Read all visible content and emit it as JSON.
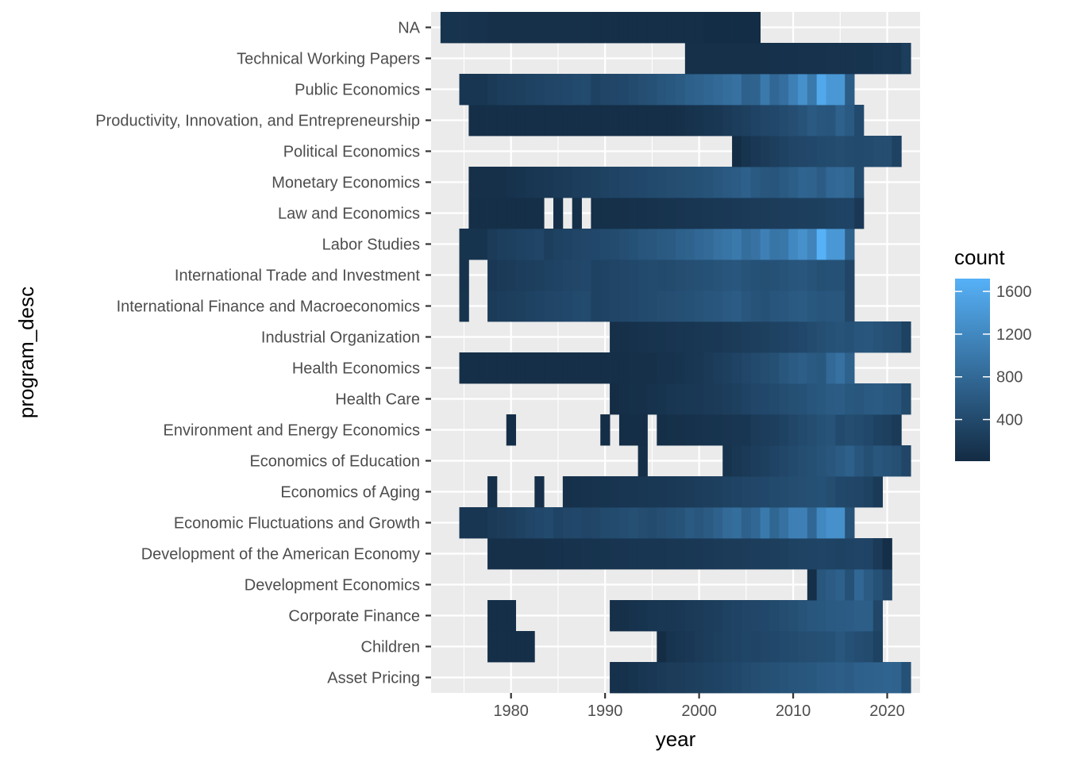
{
  "chart_data": {
    "type": "heatmap",
    "xlabel": "year",
    "ylabel": "program_desc",
    "xlim": [
      1971.5,
      2023.5
    ],
    "x_ticks": [
      1980,
      1990,
      2000,
      2010,
      2020
    ],
    "x_tick_labels": [
      "1980",
      "1990",
      "2000",
      "2010",
      "2020"
    ],
    "grid": true,
    "legend": {
      "title": "count",
      "position": "right",
      "min": 10,
      "max": 1720,
      "ticks": [
        400,
        800,
        1200,
        1600
      ],
      "tick_labels": [
        "400",
        "800",
        "1200",
        "1600"
      ],
      "color_low": "#132B43",
      "color_high": "#56B1F7"
    },
    "categories": [
      "Asset Pricing",
      "Children",
      "Corporate Finance",
      "Development Economics",
      "Development of the American Economy",
      "Economic Fluctuations and Growth",
      "Economics of Aging",
      "Economics of Education",
      "Environment and Energy Economics",
      "Health Care",
      "Health Economics",
      "Industrial Organization",
      "International Finance and Macroeconomics",
      "International Trade and Investment",
      "Labor Studies",
      "Law and Economics",
      "Monetary Economics",
      "Political Economics",
      "Productivity, Innovation, and Entrepreneurship",
      "Public Economics",
      "Technical Working Papers",
      "NA"
    ],
    "rows": [
      {
        "program": "Asset Pricing",
        "start": 1991,
        "values": [
          90,
          90,
          120,
          150,
          180,
          200,
          230,
          230,
          260,
          280,
          300,
          320,
          350,
          380,
          420,
          450,
          480,
          500,
          520,
          540,
          560,
          580,
          620,
          640,
          660,
          640,
          680,
          700,
          720,
          740,
          720,
          500
        ]
      },
      {
        "program": "Children",
        "start": 1978,
        "values": [
          60,
          60,
          60,
          60,
          60,
          null,
          null,
          null,
          null,
          null,
          null,
          null,
          null,
          null,
          null,
          null,
          null,
          null,
          30,
          120,
          150,
          180,
          220,
          250,
          280,
          300,
          320,
          350,
          330,
          360,
          380,
          400,
          420,
          440,
          460,
          480,
          500,
          560,
          500,
          450,
          420,
          300
        ]
      },
      {
        "program": "Corporate Finance",
        "start": 1978,
        "values": [
          60,
          60,
          60,
          null,
          null,
          null,
          null,
          null,
          null,
          null,
          null,
          null,
          null,
          80,
          80,
          100,
          120,
          140,
          160,
          160,
          180,
          200,
          220,
          240,
          260,
          300,
          320,
          340,
          360,
          380,
          400,
          440,
          480,
          520,
          560,
          580,
          600,
          620,
          640,
          660,
          660,
          360
        ]
      },
      {
        "program": "Development Economics",
        "start": 2012,
        "values": [
          60,
          560,
          640,
          680,
          500,
          780,
          620,
          500,
          360
        ]
      },
      {
        "program": "Development of the American Economy",
        "start": 1978,
        "values": [
          80,
          80,
          80,
          80,
          80,
          80,
          90,
          90,
          100,
          100,
          110,
          120,
          120,
          130,
          130,
          140,
          140,
          150,
          150,
          160,
          160,
          170,
          180,
          190,
          200,
          210,
          220,
          230,
          240,
          250,
          260,
          280,
          300,
          310,
          320,
          330,
          320,
          300,
          320,
          330,
          320,
          200,
          60
        ]
      },
      {
        "program": "Economic Fluctuations and Growth",
        "start": 1975,
        "values": [
          150,
          150,
          150,
          200,
          230,
          260,
          300,
          340,
          380,
          400,
          320,
          360,
          380,
          340,
          360,
          400,
          420,
          450,
          480,
          440,
          420,
          460,
          500,
          520,
          600,
          560,
          620,
          700,
          820,
          860,
          700,
          780,
          1000,
          760,
          900,
          1100,
          1100,
          780,
          1200,
          1300,
          1300,
          520
        ]
      },
      {
        "program": "Economics of Aging",
        "start": 1978,
        "values": [
          80,
          null,
          null,
          null,
          null,
          80,
          null,
          null,
          80,
          90,
          100,
          110,
          120,
          130,
          140,
          150,
          160,
          170,
          180,
          190,
          200,
          220,
          240,
          260,
          280,
          300,
          320,
          340,
          360,
          380,
          400,
          420,
          440,
          460,
          480,
          500,
          440,
          380,
          360,
          340,
          300,
          200
        ]
      },
      {
        "program": "Economics of Education",
        "start": 1994,
        "values": [
          60,
          null,
          null,
          null,
          null,
          null,
          null,
          null,
          null,
          120,
          160,
          200,
          240,
          280,
          320,
          360,
          400,
          440,
          480,
          520,
          560,
          620,
          680,
          560,
          480,
          560,
          520,
          480,
          360
        ]
      },
      {
        "program": "Environment and Energy Economics",
        "start": 1980,
        "values": [
          50,
          null,
          null,
          null,
          null,
          null,
          null,
          null,
          null,
          null,
          50,
          null,
          50,
          50,
          50,
          null,
          60,
          70,
          80,
          90,
          100,
          110,
          120,
          130,
          140,
          150,
          220,
          240,
          260,
          300,
          360,
          400,
          440,
          500,
          520,
          400,
          440,
          420,
          380,
          300,
          280,
          200
        ]
      },
      {
        "program": "Health Care",
        "start": 1991,
        "values": [
          30,
          60,
          70,
          80,
          100,
          120,
          140,
          160,
          170,
          180,
          200,
          220,
          240,
          280,
          320,
          360,
          380,
          400,
          440,
          480,
          500,
          540,
          580,
          620,
          640,
          580,
          560,
          600,
          620,
          580,
          560,
          400
        ]
      },
      {
        "program": "Health Economics",
        "start": 1975,
        "values": [
          60,
          60,
          60,
          60,
          60,
          60,
          60,
          60,
          60,
          60,
          60,
          60,
          60,
          60,
          60,
          60,
          60,
          60,
          80,
          80,
          80,
          100,
          100,
          120,
          140,
          160,
          200,
          240,
          280,
          320,
          360,
          400,
          440,
          480,
          560,
          620,
          660,
          600,
          580,
          800,
          900,
          700
        ]
      },
      {
        "program": "Industrial Organization",
        "start": 1991,
        "values": [
          80,
          80,
          90,
          100,
          110,
          120,
          130,
          140,
          150,
          160,
          170,
          180,
          200,
          220,
          240,
          260,
          280,
          300,
          320,
          340,
          380,
          420,
          460,
          500,
          520,
          500,
          540,
          560,
          520,
          480,
          460,
          300
        ]
      },
      {
        "program": "International Finance and Macroeconomics",
        "start": 1975,
        "values": [
          120,
          null,
          null,
          220,
          240,
          260,
          280,
          300,
          320,
          340,
          360,
          380,
          400,
          420,
          300,
          320,
          340,
          360,
          380,
          400,
          420,
          440,
          460,
          480,
          500,
          520,
          540,
          560,
          600,
          640,
          560,
          520,
          500,
          540,
          560,
          600,
          620,
          580,
          540,
          560,
          560,
          360
        ]
      },
      {
        "program": "International Trade and Investment",
        "start": 1975,
        "values": [
          100,
          null,
          null,
          180,
          200,
          220,
          240,
          260,
          280,
          300,
          320,
          340,
          360,
          380,
          300,
          320,
          340,
          360,
          380,
          400,
          420,
          400,
          420,
          440,
          460,
          480,
          500,
          520,
          540,
          560,
          520,
          500,
          480,
          500,
          520,
          540,
          560,
          520,
          480,
          500,
          500,
          340
        ]
      },
      {
        "program": "Labor Studies",
        "start": 1975,
        "values": [
          120,
          120,
          120,
          220,
          260,
          280,
          300,
          320,
          340,
          260,
          300,
          320,
          340,
          360,
          380,
          400,
          420,
          460,
          500,
          540,
          560,
          600,
          620,
          680,
          720,
          780,
          820,
          900,
          960,
          1000,
          860,
          920,
          1100,
          960,
          980,
          1200,
          1300,
          1150,
          1720,
          1400,
          1400,
          700
        ]
      },
      {
        "program": "Law and Economics",
        "start": 1976,
        "values": [
          60,
          60,
          60,
          60,
          60,
          60,
          60,
          60,
          null,
          60,
          null,
          60,
          null,
          70,
          70,
          80,
          80,
          90,
          90,
          100,
          110,
          120,
          130,
          140,
          150,
          160,
          170,
          180,
          190,
          200,
          210,
          220,
          230,
          240,
          250,
          260,
          270,
          280,
          300,
          320,
          320,
          180
        ]
      },
      {
        "program": "Monetary Economics",
        "start": 1976,
        "values": [
          80,
          80,
          80,
          80,
          100,
          120,
          140,
          160,
          180,
          200,
          220,
          240,
          260,
          280,
          300,
          320,
          340,
          360,
          380,
          400,
          420,
          440,
          460,
          480,
          500,
          520,
          560,
          600,
          640,
          680,
          600,
          560,
          540,
          600,
          660,
          740,
          720,
          640,
          780,
          800,
          760,
          420
        ]
      },
      {
        "program": "Political Economics",
        "start": 2004,
        "values": [
          40,
          120,
          180,
          220,
          260,
          300,
          340,
          360,
          380,
          400,
          420,
          440,
          420,
          400,
          420,
          440,
          440,
          300
        ]
      },
      {
        "program": "Productivity, Innovation, and Entrepreneurship",
        "start": 1976,
        "values": [
          60,
          60,
          60,
          60,
          60,
          60,
          60,
          60,
          60,
          60,
          60,
          60,
          60,
          60,
          60,
          60,
          60,
          60,
          60,
          60,
          60,
          60,
          80,
          100,
          120,
          140,
          160,
          200,
          240,
          280,
          320,
          360,
          380,
          420,
          460,
          520,
          600,
          560,
          540,
          700,
          600,
          400
        ]
      },
      {
        "program": "Public Economics",
        "start": 1975,
        "values": [
          150,
          150,
          150,
          200,
          240,
          260,
          280,
          300,
          320,
          340,
          360,
          380,
          400,
          420,
          300,
          340,
          360,
          380,
          420,
          460,
          500,
          540,
          580,
          620,
          680,
          720,
          760,
          800,
          860,
          900,
          700,
          720,
          1000,
          780,
          880,
          1100,
          1300,
          1000,
          1600,
          1400,
          1400,
          650
        ]
      },
      {
        "program": "Technical Working Papers",
        "start": 1999,
        "values": [
          80,
          80,
          80,
          80,
          80,
          80,
          80,
          80,
          80,
          90,
          90,
          90,
          100,
          100,
          100,
          110,
          110,
          110,
          120,
          120,
          150,
          160,
          150,
          240
        ]
      },
      {
        "program": "NA",
        "start": 1973,
        "values": [
          120,
          120,
          110,
          100,
          100,
          80,
          80,
          80,
          80,
          80,
          80,
          80,
          80,
          80,
          80,
          80,
          60,
          60,
          60,
          60,
          60,
          60,
          60,
          60,
          60,
          60,
          60,
          60,
          40,
          40,
          40,
          40,
          40,
          40
        ]
      }
    ]
  }
}
